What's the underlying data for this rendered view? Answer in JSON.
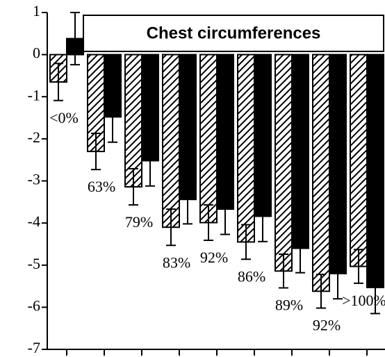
{
  "chart_data": {
    "type": "bar",
    "title": "Chest circumferences",
    "categories": [
      "<0%",
      "63%",
      "79%",
      "83%",
      "92%",
      "86%",
      "89%",
      "92%",
      ">100%"
    ],
    "ylim": [
      -7,
      1
    ],
    "yticks": [
      1,
      0,
      -1,
      -2,
      -3,
      -4,
      -5,
      -6,
      -7
    ],
    "series": [
      {
        "color": "#000000",
        "hatch": true,
        "values": [
          -0.65,
          -2.3,
          -3.14,
          -4.1,
          -3.99,
          -4.45,
          -5.14,
          -5.62,
          -5.03
        ],
        "errors": [
          0.44,
          0.43,
          0.43,
          0.43,
          0.42,
          0.41,
          0.4,
          0.4,
          0.4
        ]
      },
      {
        "color": "#000000",
        "hatch": false,
        "values": [
          0.38,
          -1.48,
          -2.52,
          -3.44,
          -3.67,
          -3.84,
          -4.6,
          -5.2,
          -5.53
        ],
        "errors": [
          0.62,
          0.6,
          0.6,
          0.58,
          0.6,
          0.6,
          0.58,
          0.6,
          0.62
        ]
      }
    ]
  }
}
